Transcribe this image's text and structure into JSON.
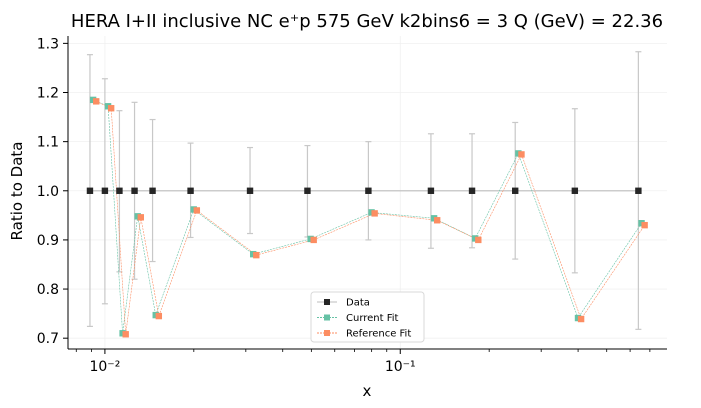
{
  "chart_data": {
    "type": "scatter",
    "title": "HERA I+II inclusive NC e⁺p 575 GeV k2bins6 = 3 Q (GeV) = 22.36",
    "xlabel": "x",
    "ylabel": "Ratio to Data",
    "xscale": "log",
    "xlim": [
      0.0075,
      0.8
    ],
    "ylim": [
      0.678,
      1.315
    ],
    "yticks": [
      0.7,
      0.8,
      0.9,
      1.0,
      1.1,
      1.2,
      1.3
    ],
    "ytick_labels": [
      "0.7",
      "0.8",
      "0.9",
      "1.0",
      "1.1",
      "1.2",
      "1.3"
    ],
    "xticks": [
      0.01,
      0.1
    ],
    "xtick_labels": [
      "10⁻²",
      "10⁻¹"
    ],
    "grid": true,
    "legend_position": "lower-center",
    "series": [
      {
        "name": "Data",
        "color": "#262626",
        "marker": "square",
        "x": [
          0.0089,
          0.01,
          0.0112,
          0.0126,
          0.0145,
          0.0195,
          0.031,
          0.0485,
          0.078,
          0.127,
          0.175,
          0.245,
          0.39,
          0.64
        ],
        "values": [
          1.0,
          1.0,
          1.0,
          1.0,
          1.0,
          1.0,
          1.0,
          1.0,
          1.0,
          1.0,
          1.0,
          1.0,
          1.0,
          1.0
        ],
        "err_upper": [
          1.277,
          1.228,
          1.163,
          1.18,
          1.145,
          1.097,
          1.088,
          1.092,
          1.1,
          1.116,
          1.116,
          1.139,
          1.167,
          1.283
        ],
        "err_lower": [
          0.724,
          0.77,
          0.835,
          0.82,
          0.856,
          0.905,
          0.913,
          0.906,
          0.9,
          0.883,
          0.884,
          0.861,
          0.833,
          0.718
        ]
      },
      {
        "name": "Current Fit",
        "color": "#66c2a5",
        "marker": "square",
        "x": [
          0.0089,
          0.01,
          0.0112,
          0.0126,
          0.0145,
          0.0195,
          0.031,
          0.0485,
          0.078,
          0.127,
          0.175,
          0.245,
          0.39,
          0.64
        ],
        "values": [
          1.185,
          1.172,
          0.71,
          0.948,
          0.747,
          0.962,
          0.871,
          0.902,
          0.956,
          0.944,
          0.903,
          1.076,
          0.741,
          0.934
        ]
      },
      {
        "name": "Reference Fit",
        "color": "#fc8d62",
        "marker": "square",
        "x": [
          0.0089,
          0.01,
          0.0112,
          0.0126,
          0.0145,
          0.0195,
          0.031,
          0.0485,
          0.078,
          0.127,
          0.175,
          0.245,
          0.39,
          0.64
        ],
        "values": [
          1.182,
          1.168,
          0.708,
          0.946,
          0.745,
          0.96,
          0.869,
          0.9,
          0.954,
          0.94,
          0.9,
          1.074,
          0.739,
          0.93
        ]
      }
    ]
  }
}
